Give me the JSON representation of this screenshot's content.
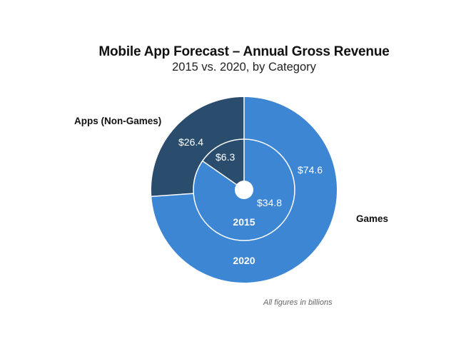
{
  "chart_data": {
    "type": "pie",
    "title": "Mobile App Forecast – Annual Gross Revenue",
    "subtitle": "2015 vs. 2020, by Category",
    "footnote": "All figures in billions",
    "categories": [
      "Apps (Non-Games)",
      "Games"
    ],
    "colors": {
      "Apps (Non-Games)": "#2a4d6e",
      "Games": "#3d86d4"
    },
    "rings": [
      {
        "name": "2015",
        "position": "inner",
        "values": [
          6.3,
          34.8
        ],
        "labels": [
          "$6.3",
          "$34.8"
        ]
      },
      {
        "name": "2020",
        "position": "outer",
        "values": [
          26.4,
          74.6
        ],
        "labels": [
          "$26.4",
          "$74.6"
        ]
      }
    ],
    "category_labels": [
      "Apps (Non-Games)",
      "Games"
    ],
    "unit": "billions USD"
  }
}
